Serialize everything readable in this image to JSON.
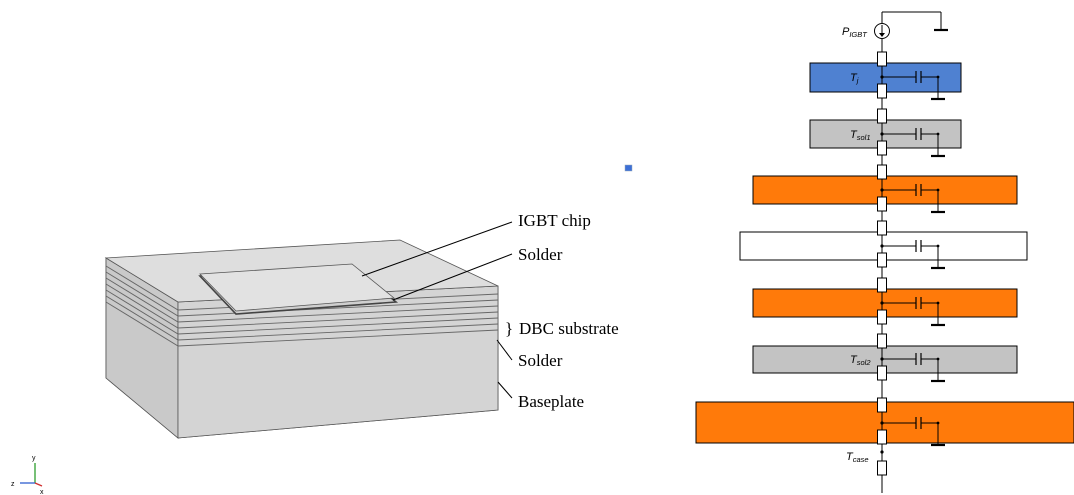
{
  "module_view": {
    "labels": {
      "igbt_chip": "IGBT chip",
      "solder_top": "Solder",
      "dbc_substrate": "DBC substrate",
      "dbc_brace": "}",
      "solder_bottom": "Solder",
      "baseplate": "Baseplate"
    },
    "axes": {
      "y": "y",
      "z": "z",
      "x": "x"
    },
    "colors": {
      "block": "#d6d6d6",
      "edge": "#555555",
      "y_axis": "#2e9e2e",
      "z_axis": "#2f5fd0",
      "x_axis": "#d03030"
    }
  },
  "circuit": {
    "source": {
      "main": "P",
      "sub": "IGBT"
    },
    "nodes": {
      "tj": {
        "main": "T",
        "sub": "j"
      },
      "tsol1": {
        "main": "T",
        "sub": "sol1"
      },
      "tsol2": {
        "main": "T",
        "sub": "sol2"
      },
      "tcase": {
        "main": "T",
        "sub": "case"
      }
    },
    "layers": [
      {
        "fill": "blue",
        "label": "tj"
      },
      {
        "fill": "gray",
        "label": "tsol1"
      },
      {
        "fill": "orange",
        "label": ""
      },
      {
        "fill": "white",
        "label": ""
      },
      {
        "fill": "orange",
        "label": ""
      },
      {
        "fill": "gray",
        "label": "tsol2"
      },
      {
        "fill": "orange",
        "label": ""
      }
    ],
    "colors": {
      "blue": "#4f81d1",
      "gray": "#c3c3c3",
      "orange": "#ff7a0a",
      "white": "#ffffff",
      "wire": "#000000"
    }
  }
}
